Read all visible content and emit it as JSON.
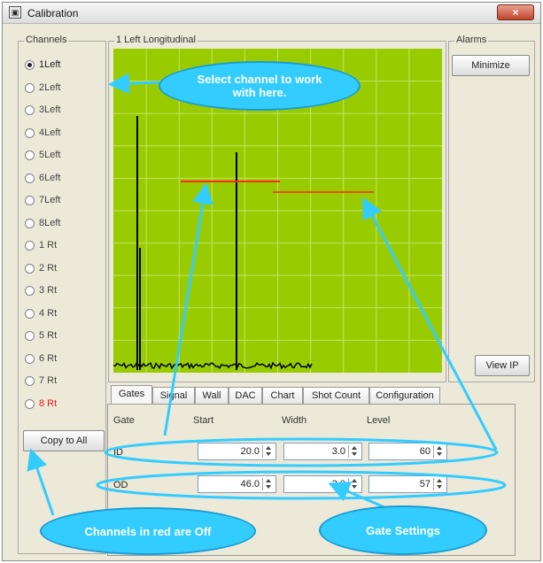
{
  "window": {
    "title": "Calibration",
    "close_label": "×",
    "title_icon": "calibration-app-icon"
  },
  "channels": {
    "group_label": "Channels",
    "items": [
      {
        "label": "1Left",
        "checked": true,
        "color": "#222222"
      },
      {
        "label": "2Left",
        "checked": false,
        "color": "#444444"
      },
      {
        "label": "3Left",
        "checked": false,
        "color": "#444444"
      },
      {
        "label": "4Left",
        "checked": false,
        "color": "#444444"
      },
      {
        "label": "5Left",
        "checked": false,
        "color": "#444444"
      },
      {
        "label": "6Left",
        "checked": false,
        "color": "#444444"
      },
      {
        "label": "7Left",
        "checked": false,
        "color": "#444444"
      },
      {
        "label": "8Left",
        "checked": false,
        "color": "#444444"
      },
      {
        "label": "1 Rt",
        "checked": false,
        "color": "#444444"
      },
      {
        "label": "2 Rt",
        "checked": false,
        "color": "#444444"
      },
      {
        "label": "3 Rt",
        "checked": false,
        "color": "#444444"
      },
      {
        "label": "4 Rt",
        "checked": false,
        "color": "#444444"
      },
      {
        "label": "5 Rt",
        "checked": false,
        "color": "#444444"
      },
      {
        "label": "6 Rt",
        "checked": false,
        "color": "#444444"
      },
      {
        "label": "7 Rt",
        "checked": false,
        "color": "#444444"
      },
      {
        "label": "8 Rt",
        "checked": false,
        "color": "#e02020"
      }
    ],
    "copy_button": "Copy to All"
  },
  "scope": {
    "group_label": "1 Left Longitudinal",
    "background_color": "#99cc00",
    "gate_color": "#ff2a00"
  },
  "alarms": {
    "group_label": "Alarms",
    "minimize_button": "Minimize",
    "view_ip_button": "View IP"
  },
  "tabs": [
    "Gates",
    "Signal",
    "Wall",
    "DAC",
    "Chart",
    "Shot Count",
    "Configuration"
  ],
  "gates": {
    "headers": {
      "gate": "Gate",
      "start": "Start",
      "width": "Width",
      "level": "Level"
    },
    "rows": [
      {
        "name": "ID",
        "start": "20.0",
        "width": "3.0",
        "level": "60"
      },
      {
        "name": "OD",
        "start": "46.0",
        "width": "3.0",
        "level": "57"
      }
    ]
  },
  "annotations": {
    "select_channel": "Select channel to work with here.",
    "channels_red": "Channels in red are Off",
    "gate_settings": "Gate Settings",
    "callout_color": "#33ccff"
  }
}
